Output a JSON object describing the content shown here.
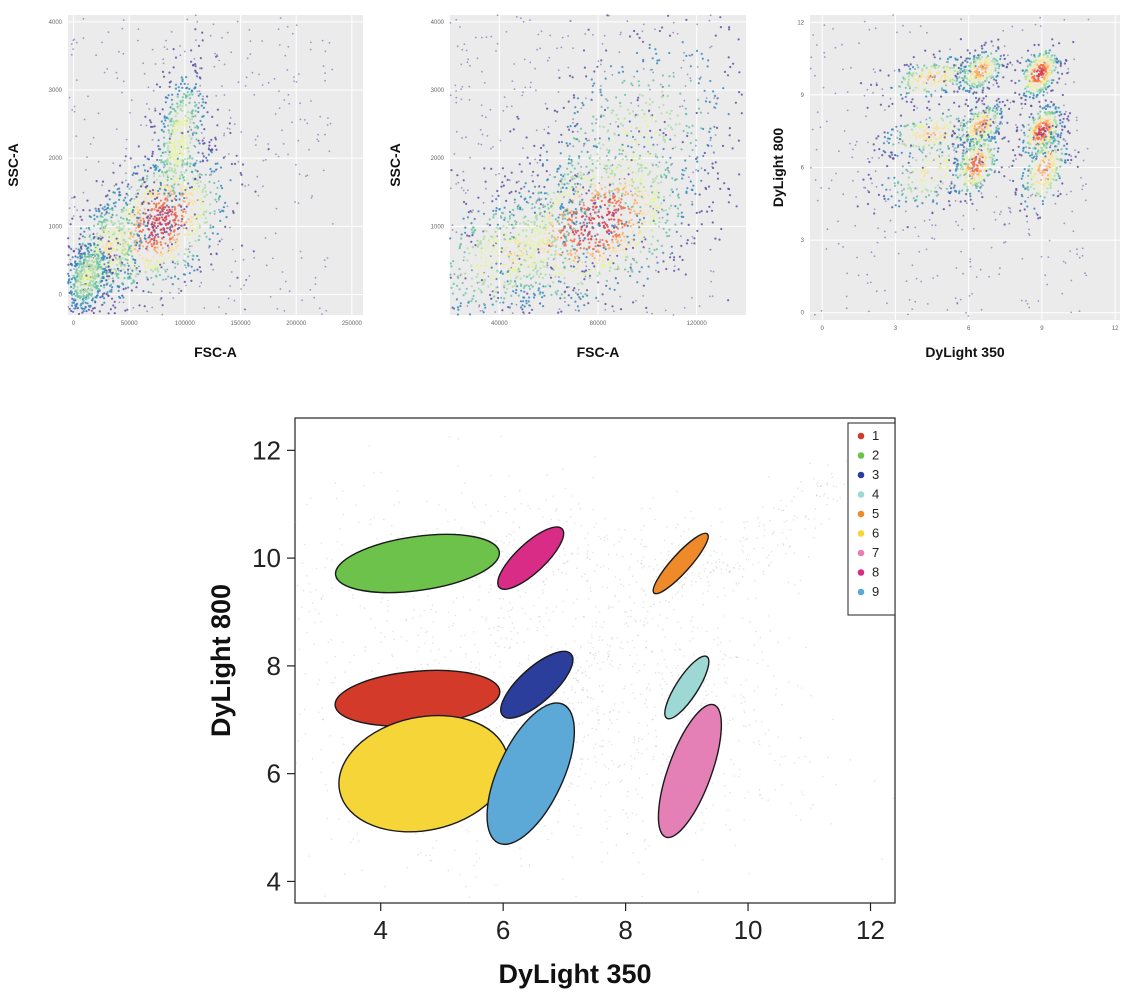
{
  "chart_data": [
    {
      "type": "scatter",
      "xlabel": "FSC-A",
      "ylabel": "SSC-A",
      "xlim": [
        -5000,
        260000
      ],
      "ylim": [
        -300,
        4100
      ],
      "xticks": [
        "0",
        "50000",
        "100000",
        "150000",
        "200000",
        "250000"
      ],
      "xtick_values": [
        0,
        50000,
        100000,
        150000,
        200000,
        250000
      ],
      "yticks": [
        "0",
        "1000",
        "2000",
        "3000",
        "4000"
      ],
      "ytick_values": [
        0,
        1000,
        2000,
        3000,
        4000
      ],
      "grid": true,
      "colormap": [
        "#5e4fa2",
        "#3288bd",
        "#66c2a5",
        "#abdda4",
        "#e6f598",
        "#fee08b",
        "#fdae61",
        "#f46d43",
        "#d53e4f"
      ],
      "density_modes": [
        {
          "x": 78000,
          "y": 1050,
          "weight": 1.0
        },
        {
          "x": 95000,
          "y": 2250,
          "weight": 0.55
        },
        {
          "x": 30000,
          "y": 650,
          "weight": 0.6
        },
        {
          "x": 12000,
          "y": 250,
          "weight": 0.5
        }
      ]
    },
    {
      "type": "scatter",
      "xlabel": "FSC-A",
      "ylabel": "SSC-A",
      "xlim": [
        20000,
        140000
      ],
      "ylim": [
        -300,
        4100
      ],
      "xticks": [
        "40000",
        "80000",
        "120000"
      ],
      "xtick_values": [
        40000,
        80000,
        120000
      ],
      "yticks": [
        "1000",
        "2000",
        "3000",
        "4000"
      ],
      "ytick_values": [
        1000,
        2000,
        3000,
        4000
      ],
      "grid": true,
      "density_modes": [
        {
          "x": 79000,
          "y": 1050,
          "weight": 1.0
        },
        {
          "x": 95000,
          "y": 2200,
          "weight": 0.5
        },
        {
          "x": 45000,
          "y": 600,
          "weight": 0.6
        }
      ]
    },
    {
      "type": "scatter",
      "xlabel": "DyLight 350",
      "ylabel": "DyLight 800",
      "xlim": [
        -0.5,
        12.2
      ],
      "ylim": [
        -0.3,
        12.3
      ],
      "xticks": [
        "0",
        "3",
        "6",
        "9",
        "12"
      ],
      "xtick_values": [
        0,
        3,
        6,
        9,
        12
      ],
      "yticks": [
        "0",
        "3",
        "6",
        "9",
        "12"
      ],
      "ytick_values": [
        0,
        3,
        6,
        9,
        12
      ],
      "grid": true,
      "density_modes": [
        {
          "x": 4.5,
          "y": 9.7,
          "weight": 0.7
        },
        {
          "x": 6.5,
          "y": 10.0,
          "weight": 0.8
        },
        {
          "x": 8.9,
          "y": 9.9,
          "weight": 1.0
        },
        {
          "x": 4.5,
          "y": 7.4,
          "weight": 0.7
        },
        {
          "x": 6.5,
          "y": 7.7,
          "weight": 0.8
        },
        {
          "x": 9.0,
          "y": 7.5,
          "weight": 1.0
        },
        {
          "x": 4.5,
          "y": 5.8,
          "weight": 0.6
        },
        {
          "x": 6.3,
          "y": 6.1,
          "weight": 0.9
        },
        {
          "x": 9.1,
          "y": 5.9,
          "weight": 0.8
        }
      ]
    },
    {
      "type": "scatter",
      "xlabel": "DyLight 350",
      "ylabel": "DyLight 800",
      "xlim": [
        2.6,
        12.4
      ],
      "ylim": [
        3.6,
        12.6
      ],
      "xticks": [
        "4",
        "6",
        "8",
        "10",
        "12"
      ],
      "xtick_values": [
        4,
        6,
        8,
        10,
        12
      ],
      "yticks": [
        "4",
        "6",
        "8",
        "10",
        "12"
      ],
      "ytick_values": [
        4,
        6,
        8,
        10,
        12
      ],
      "grid": false,
      "legend_position": "top-right",
      "series": [
        {
          "name": "1",
          "color": "#d43a2a",
          "cx": 4.6,
          "cy": 7.4,
          "rx": 1.35,
          "ry": 0.5,
          "angle": 5
        },
        {
          "name": "2",
          "color": "#6cc24a",
          "cx": 4.6,
          "cy": 9.9,
          "rx": 1.35,
          "ry": 0.5,
          "angle": 8
        },
        {
          "name": "3",
          "color": "#2b3e9c",
          "cx": 6.55,
          "cy": 7.65,
          "rx": 0.75,
          "ry": 0.32,
          "angle": 42
        },
        {
          "name": "4",
          "color": "#9ed8d4",
          "cx": 9.0,
          "cy": 7.6,
          "rx": 0.6,
          "ry": 0.2,
          "angle": 57
        },
        {
          "name": "5",
          "color": "#ef8a2a",
          "cx": 8.9,
          "cy": 9.9,
          "rx": 0.65,
          "ry": 0.17,
          "angle": 48
        },
        {
          "name": "6",
          "color": "#f5d537",
          "cx": 4.7,
          "cy": 6.0,
          "rx": 1.4,
          "ry": 1.05,
          "angle": 12
        },
        {
          "name": "7",
          "color": "#e480b6",
          "cx": 9.05,
          "cy": 6.05,
          "rx": 1.15,
          "ry": 0.4,
          "angle": 70
        },
        {
          "name": "8",
          "color": "#d82c87",
          "cx": 6.45,
          "cy": 10.0,
          "rx": 0.7,
          "ry": 0.27,
          "angle": 43
        },
        {
          "name": "9",
          "color": "#5ca8d6",
          "cx": 6.45,
          "cy": 6.0,
          "rx": 1.25,
          "ry": 0.6,
          "angle": 65
        }
      ],
      "background_color": "#b0b0b0"
    }
  ]
}
